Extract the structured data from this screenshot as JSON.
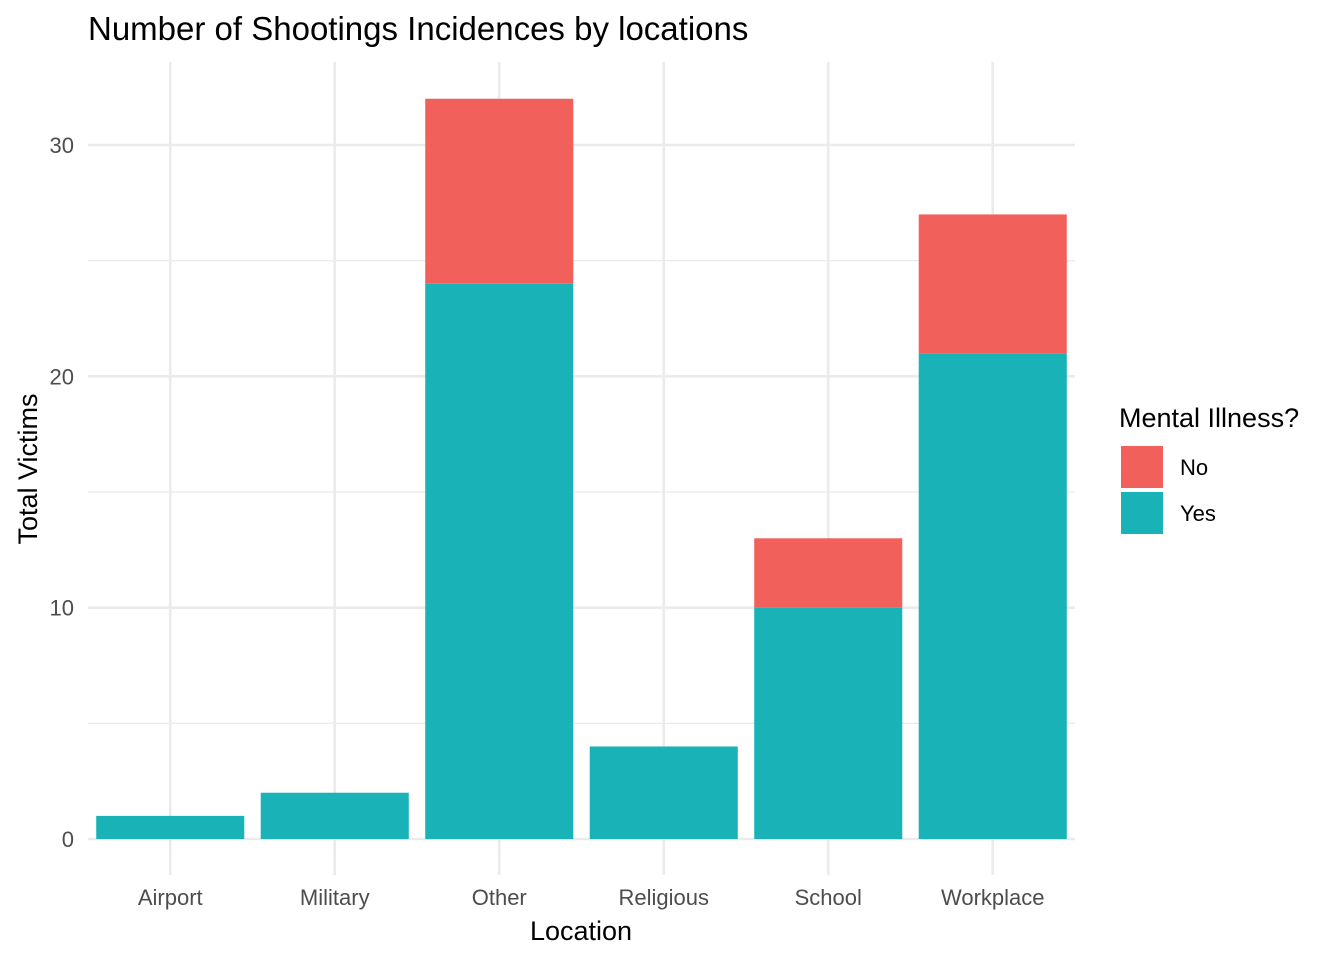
{
  "chart_data": {
    "type": "bar",
    "stacked": true,
    "title": "Number of Shootings Incidences by locations",
    "xlabel": "Location",
    "ylabel": "Total Victims",
    "categories": [
      "Airport",
      "Military",
      "Other",
      "Religious",
      "School",
      "Workplace"
    ],
    "series": [
      {
        "name": "Yes",
        "color": "#19B3B7",
        "values": [
          1,
          2,
          24,
          4,
          10,
          21
        ]
      },
      {
        "name": "No",
        "color": "#F2605C",
        "values": [
          0,
          0,
          8,
          0,
          3,
          6
        ]
      }
    ],
    "ylim": [
      0,
      33
    ],
    "yticks": [
      0,
      10,
      20,
      30
    ],
    "grid": true,
    "legend": {
      "title": "Mental Illness?",
      "position": "right",
      "items": [
        {
          "label": "No",
          "color": "#F2605C"
        },
        {
          "label": "Yes",
          "color": "#19B3B7"
        }
      ]
    }
  }
}
